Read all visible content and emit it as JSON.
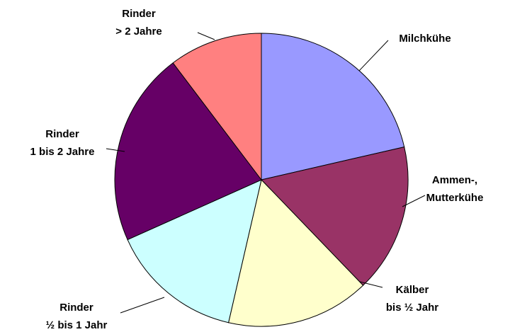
{
  "chart_data": {
    "type": "pie",
    "categories": [
      [
        "Milchkühe"
      ],
      [
        "Ammen-,",
        "Mutterkühe"
      ],
      [
        "Kälber",
        "bis ½ Jahr"
      ],
      [
        "Rinder",
        "½ bis 1 Jahr"
      ],
      [
        "Rinder",
        "1 bis 2 Jahre"
      ],
      [
        "Rinder",
        "> 2 Jahre"
      ]
    ],
    "values": [
      21.4,
      16.4,
      15.8,
      14.7,
      21.4,
      10.3
    ],
    "colors": [
      "#9999ff",
      "#993366",
      "#ffffcc",
      "#ccffff",
      "#660066",
      "#ff8080"
    ]
  }
}
